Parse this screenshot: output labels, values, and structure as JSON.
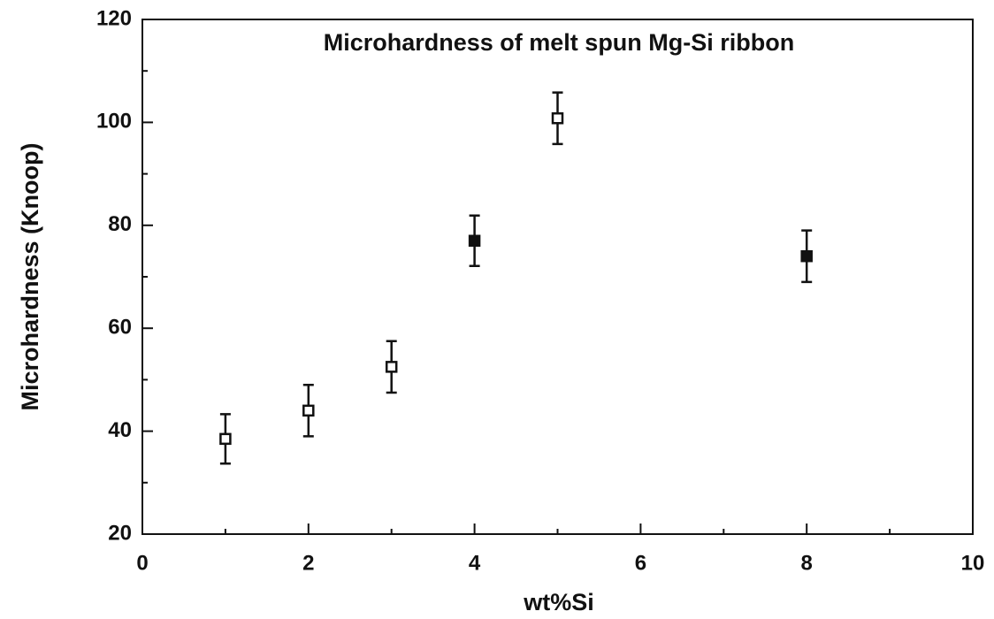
{
  "chart_data": {
    "type": "scatter",
    "title": "Microhardness of melt spun Mg-Si ribbon",
    "x_label": "wt%Si",
    "y_label": "Microhardness (Knoop)",
    "x": [
      1,
      2,
      3,
      4,
      5,
      8
    ],
    "values": [
      38.5,
      44,
      52.5,
      77,
      100.8,
      74
    ],
    "errors": [
      4.8,
      5,
      5,
      4.9,
      5,
      5
    ],
    "markers": [
      "open",
      "open",
      "open",
      "filled",
      "open",
      "filled"
    ],
    "color": "#111111",
    "xlim": [
      0,
      10
    ],
    "xticks": [
      0,
      2,
      4,
      6,
      8,
      10
    ],
    "xminorticks": [
      1,
      3,
      5,
      7,
      9
    ],
    "ylim": [
      20,
      120
    ],
    "yticks": [
      20,
      40,
      60,
      80,
      100,
      120
    ],
    "yminorticks": [
      30,
      50,
      70,
      90,
      110
    ]
  }
}
